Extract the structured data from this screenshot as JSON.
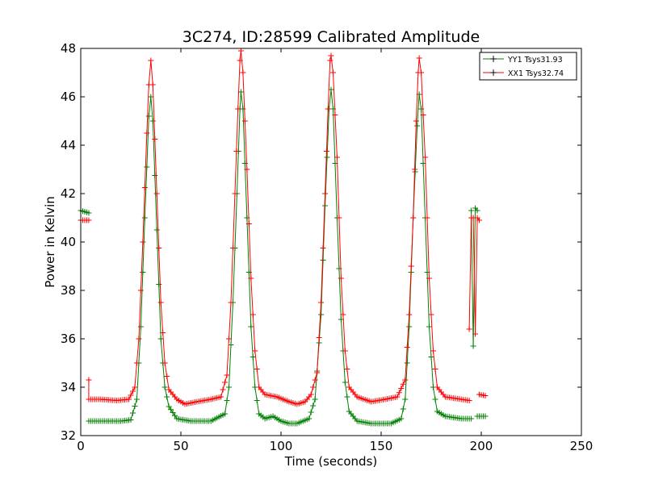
{
  "chart_data": {
    "type": "line",
    "title": "3C274, ID:28599 Calibrated Amplitude",
    "xlabel": "Time (seconds)",
    "ylabel": "Power in Kelvin",
    "xlim": [
      0,
      250
    ],
    "ylim": [
      32,
      48
    ],
    "xticks": [
      "0",
      "50",
      "100",
      "150",
      "200",
      "250"
    ],
    "yticks": [
      "32",
      "34",
      "36",
      "38",
      "40",
      "42",
      "44",
      "46",
      "48"
    ],
    "grid": false,
    "legend_position": "top-right",
    "marker": "+",
    "series": [
      {
        "name": "YY1 Tsys31.93",
        "color": "#008000",
        "segments": [
          [
            [
              0,
              41.3
            ],
            [
              4,
              41.2
            ]
          ],
          [
            [
              4,
              32.6
            ],
            [
              10,
              32.6
            ],
            [
              20,
              32.6
            ],
            [
              25,
              32.65
            ],
            [
              28,
              33.5
            ],
            [
              30,
              36.5
            ],
            [
              32,
              41.0
            ],
            [
              34,
              45.2
            ],
            [
              35,
              46.0
            ],
            [
              36,
              45.0
            ],
            [
              38,
              40.5
            ],
            [
              40,
              36.0
            ],
            [
              42,
              34.0
            ],
            [
              44,
              33.2
            ],
            [
              48,
              32.7
            ],
            [
              55,
              32.6
            ],
            [
              65,
              32.6
            ],
            [
              72,
              32.9
            ],
            [
              74,
              34.0
            ],
            [
              76,
              37.5
            ],
            [
              78,
              42.0
            ],
            [
              79.5,
              45.5
            ],
            [
              80,
              46.2
            ],
            [
              81,
              45.5
            ],
            [
              83,
              41.0
            ],
            [
              85,
              36.5
            ],
            [
              87,
              34.0
            ],
            [
              89,
              32.9
            ],
            [
              92,
              32.7
            ],
            [
              96,
              32.8
            ],
            [
              100,
              32.6
            ],
            [
              104,
              32.5
            ],
            [
              108,
              32.5
            ],
            [
              114,
              32.7
            ],
            [
              117,
              33.5
            ],
            [
              120,
              37.0
            ],
            [
              122,
              41.5
            ],
            [
              124,
              45.5
            ],
            [
              125,
              46.3
            ],
            [
              126,
              45.5
            ],
            [
              128,
              41.0
            ],
            [
              130,
              36.8
            ],
            [
              132,
              34.2
            ],
            [
              134,
              33.0
            ],
            [
              138,
              32.6
            ],
            [
              145,
              32.5
            ],
            [
              155,
              32.5
            ],
            [
              160,
              32.7
            ],
            [
              162,
              33.5
            ],
            [
              164,
              36.5
            ],
            [
              166,
              41.0
            ],
            [
              168,
              44.8
            ],
            [
              169,
              46.1
            ],
            [
              170,
              45.5
            ],
            [
              172,
              41.0
            ],
            [
              174,
              36.5
            ],
            [
              176,
              34.0
            ],
            [
              178,
              33.0
            ],
            [
              182,
              32.8
            ],
            [
              190,
              32.7
            ],
            [
              195,
              32.7
            ]
          ],
          [
            [
              195,
              41.3
            ],
            [
              196,
              35.7
            ],
            [
              197,
              41.4
            ],
            [
              198,
              41.3
            ]
          ],
          [
            [
              198,
              32.8
            ],
            [
              202,
              32.8
            ]
          ]
        ]
      },
      {
        "name": "XX1 Tsys32.74",
        "color": "#ff0000",
        "segments": [
          [
            [
              0,
              40.9
            ],
            [
              4,
              40.9
            ]
          ],
          [
            [
              4,
              34.3
            ],
            [
              4,
              33.5
            ],
            [
              10,
              33.5
            ],
            [
              18,
              33.45
            ],
            [
              24,
              33.5
            ],
            [
              27,
              34.0
            ],
            [
              29,
              36.0
            ],
            [
              31,
              40.0
            ],
            [
              33,
              44.5
            ],
            [
              34,
              46.5
            ],
            [
              35,
              47.5
            ],
            [
              36,
              46.5
            ],
            [
              38,
              42.0
            ],
            [
              40,
              37.5
            ],
            [
              42,
              35.0
            ],
            [
              44,
              33.9
            ],
            [
              48,
              33.5
            ],
            [
              52,
              33.3
            ],
            [
              58,
              33.4
            ],
            [
              65,
              33.5
            ],
            [
              70,
              33.6
            ],
            [
              73,
              34.5
            ],
            [
              75,
              37.5
            ],
            [
              77,
              42.0
            ],
            [
              78.5,
              45.5
            ],
            [
              79.5,
              47.5
            ],
            [
              80,
              47.9
            ],
            [
              81,
              47.0
            ],
            [
              83,
              43.0
            ],
            [
              85,
              38.5
            ],
            [
              87,
              35.5
            ],
            [
              89,
              34.0
            ],
            [
              92,
              33.7
            ],
            [
              98,
              33.6
            ],
            [
              104,
              33.4
            ],
            [
              108,
              33.3
            ],
            [
              112,
              33.4
            ],
            [
              115,
              33.7
            ],
            [
              118,
              34.6
            ],
            [
              120,
              37.5
            ],
            [
              122,
              42.0
            ],
            [
              123.5,
              45.5
            ],
            [
              124.5,
              47.5
            ],
            [
              125,
              47.7
            ],
            [
              126,
              47.0
            ],
            [
              128,
              43.5
            ],
            [
              130,
              38.5
            ],
            [
              132,
              35.5
            ],
            [
              134,
              34.0
            ],
            [
              138,
              33.6
            ],
            [
              145,
              33.4
            ],
            [
              152,
              33.5
            ],
            [
              158,
              33.6
            ],
            [
              162,
              34.3
            ],
            [
              164,
              37.0
            ],
            [
              166,
              41.0
            ],
            [
              167.5,
              45.0
            ],
            [
              168.5,
              47.0
            ],
            [
              169,
              47.6
            ],
            [
              170,
              47.0
            ],
            [
              172,
              43.5
            ],
            [
              174,
              38.5
            ],
            [
              176,
              35.5
            ],
            [
              178,
              34.0
            ],
            [
              182,
              33.6
            ],
            [
              190,
              33.5
            ],
            [
              194,
              33.45
            ]
          ],
          [
            [
              194,
              36.4
            ],
            [
              195,
              41.0
            ],
            [
              196,
              41.0
            ],
            [
              197,
              36.2
            ],
            [
              198,
              41.0
            ],
            [
              199,
              40.9
            ]
          ],
          [
            [
              199,
              33.7
            ],
            [
              202,
              33.65
            ]
          ]
        ]
      }
    ]
  }
}
